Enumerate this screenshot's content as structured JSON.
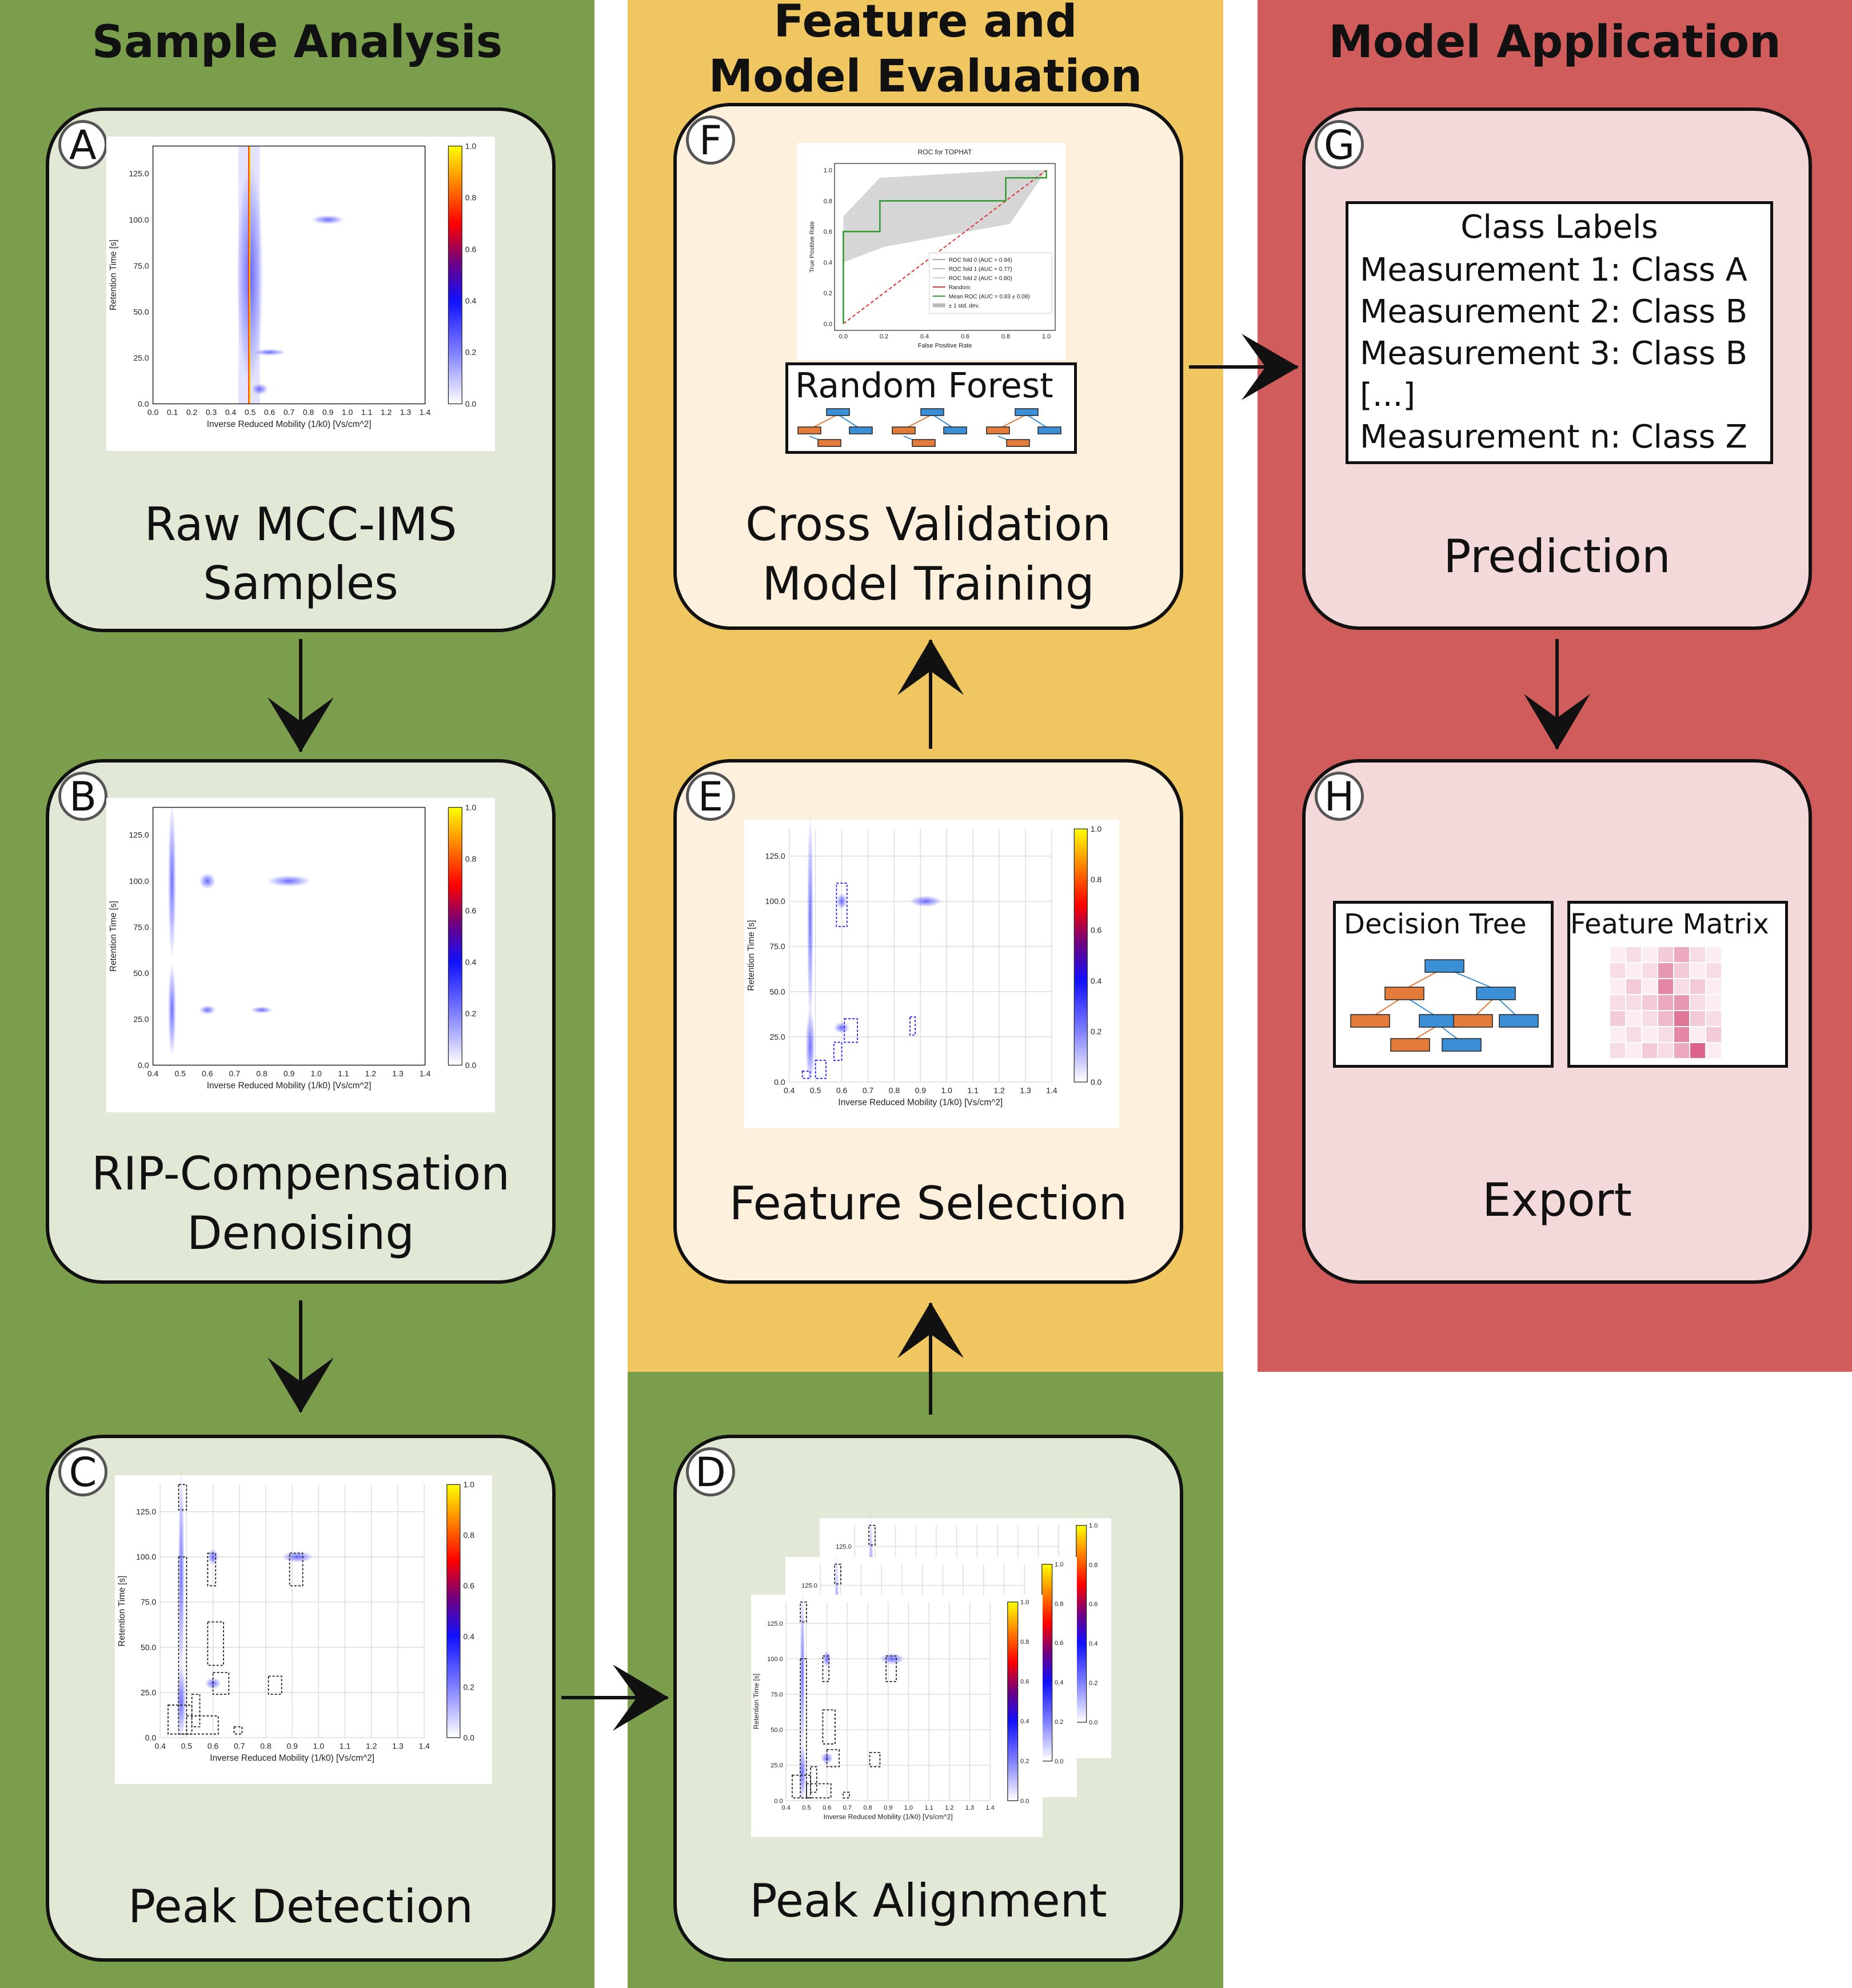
{
  "columns": [
    {
      "title_line1": "Sample Analysis",
      "title_line2": "",
      "color": "#7a9e4b"
    },
    {
      "title_line1": "Feature and",
      "title_line2": "Model Evaluation",
      "color": "#f0c660"
    },
    {
      "title_line1": "Model Application",
      "title_line2": "",
      "color": "#d05c5c"
    }
  ],
  "cards": {
    "A": {
      "letter": "A",
      "line1": "Raw MCC-IMS",
      "line2": "Samples"
    },
    "B": {
      "letter": "B",
      "line1": "RIP-Compensation",
      "line2": "Denoising"
    },
    "C": {
      "letter": "C",
      "line1": "Peak Detection",
      "line2": ""
    },
    "D": {
      "letter": "D",
      "line1": "Peak Alignment",
      "line2": ""
    },
    "E": {
      "letter": "E",
      "line1": "Feature Selection",
      "line2": ""
    },
    "F": {
      "letter": "F",
      "line1": "Cross Validation",
      "line2": "Model Training"
    },
    "G": {
      "letter": "G",
      "line1": "Prediction",
      "line2": ""
    },
    "H": {
      "letter": "H",
      "line1": "Export",
      "line2": ""
    }
  },
  "heatmap": {
    "xlabel": "Inverse Reduced Mobility (1/k0) [Vs/cm^2]",
    "ylabel": "Retention Time [s]",
    "xticks": [
      "0.0",
      "0.1",
      "0.2",
      "0.3",
      "0.4",
      "0.5",
      "0.6",
      "0.7",
      "0.8",
      "0.9",
      "1.0",
      "1.1",
      "1.2",
      "1.3",
      "1.4"
    ],
    "xticks_trim": [
      "0.4",
      "0.5",
      "0.6",
      "0.7",
      "0.8",
      "0.9",
      "1.0",
      "1.1",
      "1.2",
      "1.3",
      "1.4"
    ],
    "yticks": [
      "0.0",
      "25.0",
      "50.0",
      "75.0",
      "100.0",
      "125.0"
    ],
    "cbar_ticks": [
      "0.0",
      "0.2",
      "0.4",
      "0.6",
      "0.8",
      "1.0"
    ]
  },
  "roc": {
    "title": "ROC for TOPHAT",
    "xlabel": "False Positive Rate",
    "ylabel": "True Positive Rate",
    "ticks": [
      "0.0",
      "0.2",
      "0.4",
      "0.6",
      "0.8",
      "1.0"
    ],
    "legend": [
      "ROC fold 0 (AUC = 0.94)",
      "ROC fold 1 (AUC = 0.77)",
      "ROC fold 2 (AUC = 0.80)",
      "Random",
      "Mean ROC (AUC = 0.83 ± 0.08)",
      "± 1 std. dev."
    ]
  },
  "random_forest": {
    "title": "Random Forest"
  },
  "class_labels": {
    "title": "Class Labels",
    "rows": [
      "Measurement 1: Class A",
      "Measurement 2: Class B",
      "Measurement 3: Class B",
      "[...]",
      "Measurement n: Class Z"
    ]
  },
  "export": {
    "decision_tree": "Decision Tree",
    "feature_matrix": "Feature Matrix"
  },
  "colors": {
    "orange": "#e37b3b",
    "blue": "#3b8fd6",
    "pink": "#d8527e",
    "dark": "#111111"
  }
}
